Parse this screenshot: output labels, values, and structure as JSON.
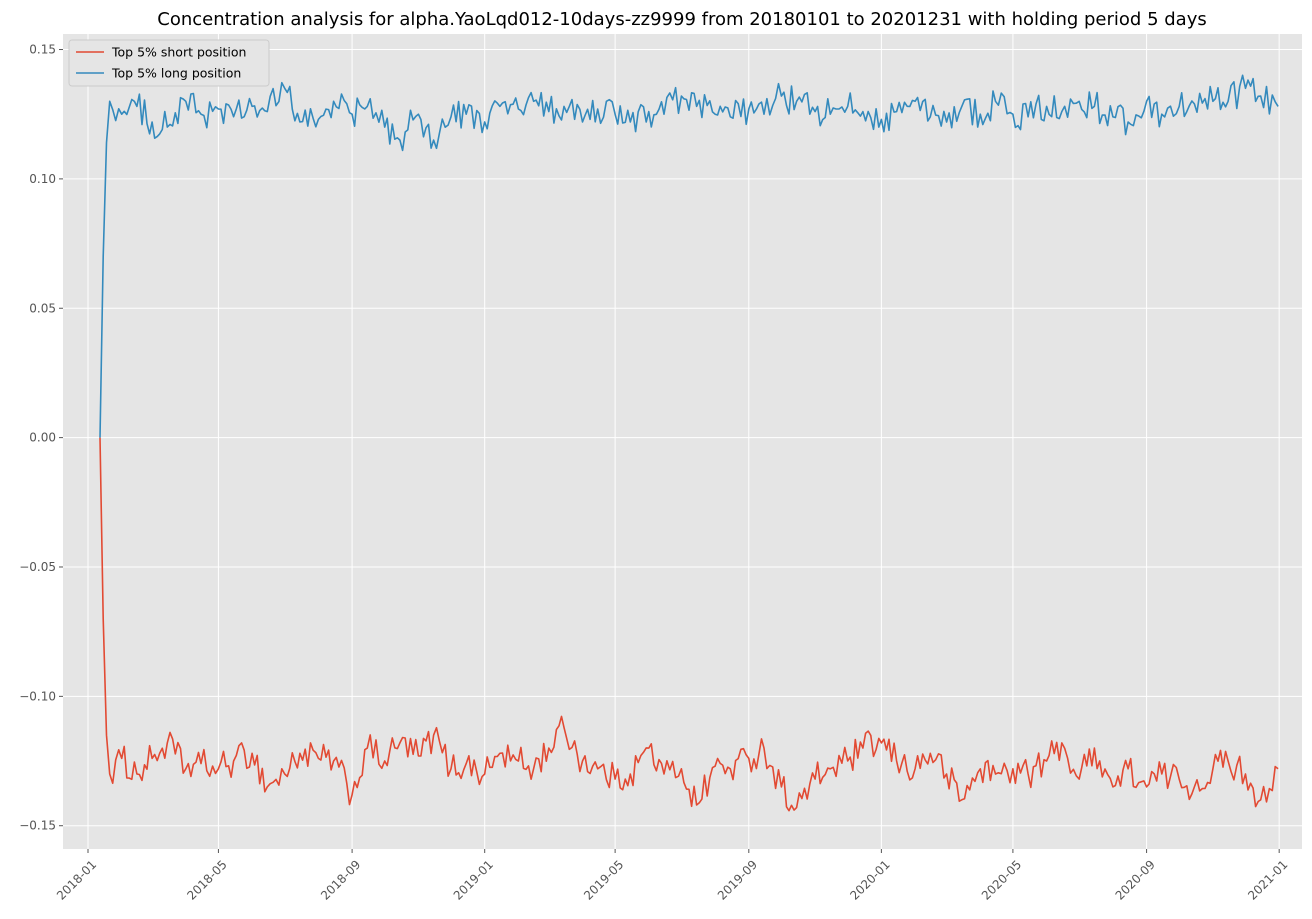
{
  "chart_data": {
    "type": "line",
    "title": "Concentration analysis for alpha.YaoLqd012-10days-zz9999 from 20180101 to 20201231 with holding period 5 days",
    "xlabel": "",
    "ylabel": "",
    "x_axis_type": "date",
    "xlim": [
      "2017-12-09",
      "2021-01-22"
    ],
    "ylim": [
      -0.159,
      0.156
    ],
    "x_ticks": [
      "2018-01",
      "2018-05",
      "2018-09",
      "2019-01",
      "2019-05",
      "2019-09",
      "2020-01",
      "2020-05",
      "2020-09",
      "2021-01"
    ],
    "y_ticks": [
      -0.15,
      -0.1,
      -0.05,
      0.0,
      0.05,
      0.1,
      0.15
    ],
    "y_tick_labels": [
      "−0.15",
      "−0.10",
      "−0.05",
      "0.00",
      "0.05",
      "0.10",
      "0.15"
    ],
    "grid": true,
    "style": "ggplot",
    "legend_position": "top-left",
    "series": [
      {
        "name": "Top 5% short position",
        "color": "#E24A33",
        "x": [
          "2018-01-12",
          "2018-01-15",
          "2018-01-18",
          "2018-01-21",
          "2018-02-01",
          "2018-02-15",
          "2018-03-01",
          "2018-03-15",
          "2018-04-01",
          "2018-04-15",
          "2018-05-01",
          "2018-05-15",
          "2018-06-01",
          "2018-06-15",
          "2018-07-01",
          "2018-07-15",
          "2018-08-01",
          "2018-08-15",
          "2018-09-01",
          "2018-09-15",
          "2018-10-01",
          "2018-10-15",
          "2018-11-01",
          "2018-11-15",
          "2018-12-01",
          "2018-12-15",
          "2019-01-01",
          "2019-01-15",
          "2019-02-01",
          "2019-02-15",
          "2019-03-01",
          "2019-03-15",
          "2019-04-01",
          "2019-04-15",
          "2019-05-01",
          "2019-05-15",
          "2019-06-01",
          "2019-06-15",
          "2019-07-01",
          "2019-07-15",
          "2019-08-01",
          "2019-08-15",
          "2019-09-01",
          "2019-09-15",
          "2019-10-01",
          "2019-10-15",
          "2019-11-01",
          "2019-11-15",
          "2019-12-01",
          "2019-12-15",
          "2020-01-01",
          "2020-01-15",
          "2020-02-01",
          "2020-02-15",
          "2020-03-01",
          "2020-03-15",
          "2020-04-01",
          "2020-04-15",
          "2020-05-01",
          "2020-05-15",
          "2020-06-01",
          "2020-06-15",
          "2020-07-01",
          "2020-07-15",
          "2020-08-01",
          "2020-08-15",
          "2020-09-01",
          "2020-09-15",
          "2020-10-01",
          "2020-10-15",
          "2020-11-01",
          "2020-11-15",
          "2020-12-01",
          "2020-12-15",
          "2020-12-31"
        ],
        "y": [
          0.0,
          -0.07,
          -0.115,
          -0.13,
          -0.124,
          -0.13,
          -0.124,
          -0.118,
          -0.128,
          -0.126,
          -0.128,
          -0.125,
          -0.122,
          -0.135,
          -0.13,
          -0.122,
          -0.124,
          -0.125,
          -0.138,
          -0.12,
          -0.125,
          -0.118,
          -0.123,
          -0.115,
          -0.128,
          -0.126,
          -0.13,
          -0.122,
          -0.125,
          -0.128,
          -0.12,
          -0.112,
          -0.125,
          -0.128,
          -0.132,
          -0.13,
          -0.12,
          -0.13,
          -0.128,
          -0.142,
          -0.127,
          -0.128,
          -0.124,
          -0.12,
          -0.135,
          -0.143,
          -0.132,
          -0.128,
          -0.125,
          -0.12,
          -0.118,
          -0.125,
          -0.128,
          -0.122,
          -0.13,
          -0.14,
          -0.128,
          -0.13,
          -0.128,
          -0.13,
          -0.125,
          -0.118,
          -0.132,
          -0.12,
          -0.135,
          -0.128,
          -0.135,
          -0.13,
          -0.132,
          -0.135,
          -0.128,
          -0.125,
          -0.13,
          -0.14,
          -0.128
        ]
      },
      {
        "name": "Top 5% long position",
        "color": "#348ABD",
        "x": [
          "2018-01-12",
          "2018-01-15",
          "2018-01-18",
          "2018-01-21",
          "2018-02-01",
          "2018-02-15",
          "2018-03-01",
          "2018-03-15",
          "2018-04-01",
          "2018-04-15",
          "2018-05-01",
          "2018-05-15",
          "2018-06-01",
          "2018-06-15",
          "2018-07-01",
          "2018-07-15",
          "2018-08-01",
          "2018-08-15",
          "2018-09-01",
          "2018-09-15",
          "2018-10-01",
          "2018-10-15",
          "2018-11-01",
          "2018-11-15",
          "2018-12-01",
          "2018-12-15",
          "2019-01-01",
          "2019-01-15",
          "2019-02-01",
          "2019-02-15",
          "2019-03-01",
          "2019-03-15",
          "2019-04-01",
          "2019-04-15",
          "2019-05-01",
          "2019-05-15",
          "2019-06-01",
          "2019-06-15",
          "2019-07-01",
          "2019-07-15",
          "2019-08-01",
          "2019-08-15",
          "2019-09-01",
          "2019-09-15",
          "2019-10-01",
          "2019-10-15",
          "2019-11-01",
          "2019-11-15",
          "2019-12-01",
          "2019-12-15",
          "2020-01-01",
          "2020-01-15",
          "2020-02-01",
          "2020-02-15",
          "2020-03-01",
          "2020-03-15",
          "2020-04-01",
          "2020-04-15",
          "2020-05-01",
          "2020-05-15",
          "2020-06-01",
          "2020-06-15",
          "2020-07-01",
          "2020-07-15",
          "2020-08-01",
          "2020-08-15",
          "2020-09-01",
          "2020-09-15",
          "2020-10-01",
          "2020-10-15",
          "2020-11-01",
          "2020-11-15",
          "2020-12-01",
          "2020-12-15",
          "2020-12-31"
        ],
        "y": [
          0.0,
          0.07,
          0.114,
          0.13,
          0.125,
          0.128,
          0.122,
          0.12,
          0.13,
          0.125,
          0.127,
          0.124,
          0.128,
          0.126,
          0.135,
          0.122,
          0.123,
          0.13,
          0.125,
          0.128,
          0.12,
          0.115,
          0.125,
          0.115,
          0.124,
          0.125,
          0.122,
          0.128,
          0.127,
          0.13,
          0.126,
          0.128,
          0.122,
          0.127,
          0.125,
          0.122,
          0.126,
          0.125,
          0.132,
          0.128,
          0.125,
          0.124,
          0.127,
          0.125,
          0.132,
          0.13,
          0.126,
          0.125,
          0.128,
          0.126,
          0.123,
          0.126,
          0.13,
          0.124,
          0.122,
          0.128,
          0.125,
          0.13,
          0.125,
          0.124,
          0.128,
          0.126,
          0.13,
          0.128,
          0.124,
          0.122,
          0.13,
          0.125,
          0.128,
          0.129,
          0.13,
          0.13,
          0.135,
          0.132,
          0.128
        ]
      }
    ]
  }
}
